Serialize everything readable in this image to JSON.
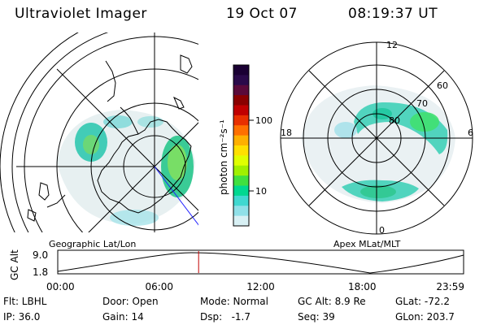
{
  "header": {
    "instrument": "Ultraviolet Imager",
    "date": "19 Oct 07",
    "time": "08:19:37 UT"
  },
  "colorbar": {
    "unit_label": "photon cm⁻²s⁻¹",
    "ticks": [
      "100",
      "10"
    ],
    "colors": [
      "#1a0033",
      "#2a0a4a",
      "#5a0a3a",
      "#8a0000",
      "#c00000",
      "#e83000",
      "#ff7000",
      "#ffb000",
      "#ffe000",
      "#e0ff00",
      "#a0f000",
      "#40e040",
      "#00d890",
      "#40d8d0",
      "#90e0e8",
      "#d8f0f4"
    ]
  },
  "left_map": {
    "projection_label": "Geographic Lat/Lon"
  },
  "right_map": {
    "projection_label": "Apex MLat/MLT",
    "mlt_labels": {
      "top": "12",
      "left": "18",
      "right": "6",
      "bottom": "0"
    },
    "lat_labels": [
      "80",
      "70",
      "60"
    ]
  },
  "timeline": {
    "axis_title": "GC Alt",
    "y_ticks": [
      "9.0",
      "1.8"
    ],
    "x_ticks": [
      "00:00",
      "06:00",
      "12:00",
      "18:00",
      "23:59"
    ],
    "current_time_hours": 8.33
  },
  "status": {
    "flt": "Flt: LBHL",
    "ip": "IP: 36.0",
    "door": "Door: Open",
    "gain": "Gain: 14",
    "mode": "Mode: Normal",
    "dsp": "Dsp:   -1.7",
    "gcalt": "GC Alt: 8.9 Re",
    "seq": "Seq: 39",
    "glat": "GLat: -72.2",
    "glon": "GLon: 203.7"
  }
}
